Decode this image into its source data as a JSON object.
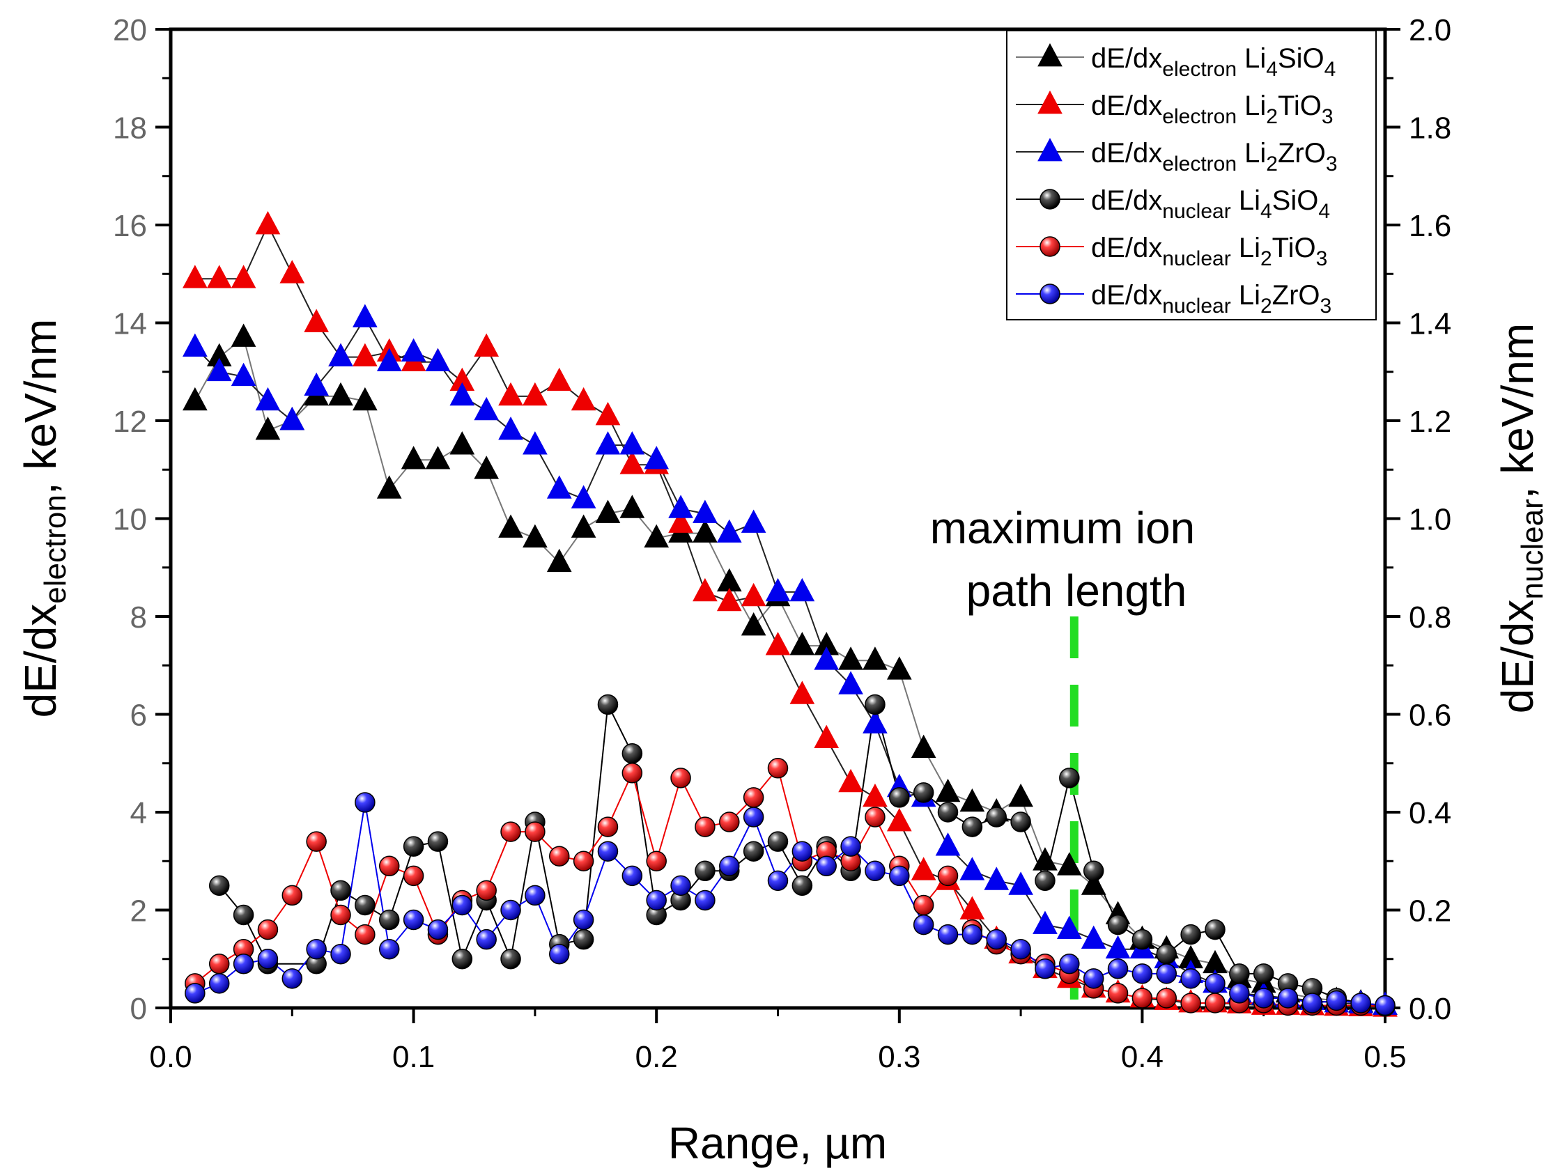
{
  "chart_data": {
    "type": "line",
    "title": "",
    "xlabel": "Range, µm",
    "ylabel_left": {
      "base": "dE/dx",
      "sub": "electron",
      "suffix": ", keV/nm"
    },
    "ylabel_right": {
      "base": "dE/dx",
      "sub": "nuclear",
      "suffix": ", keV/nm"
    },
    "xlim": [
      0,
      0.5
    ],
    "ylim_left": [
      0,
      20
    ],
    "ylim_right": [
      0,
      2.0
    ],
    "x_ticks": [
      "0.0",
      "0.1",
      "0.2",
      "0.3",
      "0.4",
      "0.5"
    ],
    "y_left_ticks": [
      "0",
      "2",
      "4",
      "6",
      "8",
      "10",
      "12",
      "14",
      "16",
      "18",
      "20"
    ],
    "y_right_ticks": [
      "0.0",
      "0.2",
      "0.4",
      "0.6",
      "0.8",
      "1.0",
      "1.2",
      "1.4",
      "1.6",
      "1.8",
      "2.0"
    ],
    "legend_position": "top-right",
    "annotation": {
      "lines": [
        "maximum ion",
        "path length"
      ],
      "x": 0.372,
      "color": "#22dd22"
    },
    "x": [
      0.01,
      0.02,
      0.03,
      0.04,
      0.05,
      0.06,
      0.07,
      0.08,
      0.09,
      0.1,
      0.11,
      0.12,
      0.13,
      0.14,
      0.15,
      0.16,
      0.17,
      0.18,
      0.19,
      0.2,
      0.21,
      0.22,
      0.23,
      0.24,
      0.25,
      0.26,
      0.27,
      0.28,
      0.29,
      0.3,
      0.31,
      0.32,
      0.33,
      0.34,
      0.35,
      0.36,
      0.37,
      0.38,
      0.39,
      0.4,
      0.41,
      0.42,
      0.43,
      0.44,
      0.45,
      0.46,
      0.47,
      0.48,
      0.49,
      0.5
    ],
    "series": [
      {
        "name": "Li4SiO4 electron",
        "label_base": "dE/dx",
        "label_sub": "electron",
        "compound": [
          [
            "Li",
            ""
          ],
          [
            "4",
            ""
          ],
          [
            "SiO",
            ""
          ],
          [
            "4",
            "s"
          ]
        ],
        "compound_text": "Li4SiO4",
        "quantity": "electron",
        "axis": "left",
        "marker": "triangle",
        "color": "#000000",
        "line_color": "#777777",
        "values": [
          12.4,
          13.3,
          13.7,
          11.8,
          12.0,
          12.5,
          12.5,
          12.4,
          10.6,
          11.2,
          11.2,
          11.5,
          11.0,
          9.8,
          9.6,
          9.1,
          9.8,
          10.1,
          10.2,
          9.6,
          9.7,
          9.7,
          8.7,
          7.8,
          8.4,
          7.4,
          7.4,
          7.1,
          7.1,
          6.9,
          5.3,
          4.4,
          4.2,
          4.0,
          4.3,
          3.0,
          2.9,
          2.5,
          1.9,
          1.4,
          1.2,
          1.0,
          0.9,
          0.6,
          0.5,
          0.3,
          0.2,
          0.15,
          0.1,
          0.05
        ]
      },
      {
        "name": "Li2TiO3 electron",
        "compound_text": "Li2TiO3",
        "quantity": "electron",
        "axis": "left",
        "marker": "triangle",
        "color": "#ee0000",
        "line_color": "#222222",
        "values": [
          14.9,
          14.9,
          14.9,
          16.0,
          15.0,
          14.0,
          13.3,
          13.3,
          13.4,
          13.2,
          13.2,
          12.8,
          13.5,
          12.5,
          12.5,
          12.8,
          12.4,
          12.1,
          11.1,
          11.1,
          9.9,
          8.5,
          8.3,
          8.4,
          7.4,
          6.4,
          5.5,
          4.6,
          4.3,
          3.8,
          2.8,
          2.6,
          2.0,
          1.4,
          1.1,
          0.8,
          0.6,
          0.4,
          0.3,
          0.2,
          0.15,
          0.1,
          0.1,
          0.08,
          0.05,
          0.05,
          0.04,
          0.03,
          0.02,
          0.01
        ]
      },
      {
        "name": "Li2ZrO3 electron",
        "compound_text": "Li2ZrO3",
        "quantity": "electron",
        "axis": "left",
        "marker": "triangle",
        "color": "#0000ee",
        "line_color": "#222222",
        "values": [
          13.5,
          13.0,
          12.9,
          12.4,
          12.0,
          12.7,
          13.3,
          14.1,
          13.2,
          13.4,
          13.2,
          12.5,
          12.2,
          11.8,
          11.5,
          10.6,
          10.4,
          11.5,
          11.5,
          11.2,
          10.2,
          10.1,
          9.7,
          9.9,
          8.5,
          8.5,
          7.1,
          6.6,
          5.8,
          4.5,
          4.3,
          3.3,
          2.8,
          2.6,
          2.5,
          1.7,
          1.6,
          1.4,
          1.2,
          1.2,
          1.0,
          0.7,
          0.5,
          0.3,
          0.25,
          0.2,
          0.15,
          0.1,
          0.08,
          0.05
        ]
      },
      {
        "name": "Li4SiO4 nuclear",
        "compound_text": "Li4SiO4",
        "quantity": "nuclear",
        "axis": "right",
        "marker": "sphere",
        "color": "#111111",
        "line_color": "#000000",
        "values": [
          null,
          0.25,
          0.19,
          0.09,
          null,
          0.09,
          0.24,
          0.21,
          0.18,
          0.33,
          0.34,
          0.1,
          0.22,
          0.1,
          0.38,
          0.13,
          0.14,
          0.62,
          0.52,
          0.19,
          0.22,
          0.28,
          0.28,
          0.32,
          0.34,
          0.25,
          0.33,
          0.28,
          0.62,
          0.43,
          0.44,
          0.4,
          0.37,
          0.39,
          0.38,
          0.26,
          0.47,
          0.28,
          0.17,
          0.14,
          0.11,
          0.15,
          0.16,
          0.07,
          0.07,
          0.05,
          0.04,
          0.02,
          0.01,
          0.005
        ]
      },
      {
        "name": "Li2TiO3 nuclear",
        "compound_text": "Li2TiO3",
        "quantity": "nuclear",
        "axis": "right",
        "marker": "sphere",
        "color": "#ee0000",
        "line_color": "#ee0000",
        "values": [
          0.05,
          0.09,
          0.12,
          0.16,
          0.23,
          0.34,
          0.19,
          0.15,
          0.29,
          0.27,
          0.15,
          0.22,
          0.24,
          0.36,
          0.36,
          0.31,
          0.3,
          0.37,
          0.48,
          0.3,
          0.47,
          0.37,
          0.38,
          0.43,
          0.49,
          0.3,
          0.32,
          0.3,
          0.39,
          0.29,
          0.21,
          0.27,
          0.16,
          0.13,
          0.11,
          0.09,
          0.07,
          0.04,
          0.03,
          0.02,
          0.02,
          0.01,
          0.01,
          0.01,
          0.01,
          0.005,
          0.005,
          0.005,
          0.005,
          0.003
        ]
      },
      {
        "name": "Li2ZrO3 nuclear",
        "compound_text": "Li2ZrO3",
        "quantity": "nuclear",
        "axis": "right",
        "marker": "sphere",
        "color": "#0000ee",
        "line_color": "#0000ee",
        "values": [
          0.03,
          0.05,
          0.09,
          0.1,
          0.06,
          0.12,
          0.11,
          0.42,
          0.12,
          0.18,
          0.16,
          0.21,
          0.14,
          0.2,
          0.23,
          0.11,
          0.18,
          0.32,
          0.27,
          0.22,
          0.25,
          0.22,
          0.29,
          0.39,
          0.26,
          0.32,
          0.29,
          0.33,
          0.28,
          0.27,
          0.17,
          0.15,
          0.15,
          0.14,
          0.12,
          0.08,
          0.09,
          0.06,
          0.08,
          0.07,
          0.07,
          0.06,
          0.05,
          0.03,
          0.02,
          0.02,
          0.01,
          0.015,
          0.01,
          0.005
        ]
      }
    ],
    "legend": [
      {
        "base": "dE/dx",
        "sub": "electron",
        "compound": [
          "Li",
          "4",
          "SiO",
          "4"
        ],
        "marker": "triangle",
        "color": "#000000",
        "line_color": "#777777"
      },
      {
        "base": "dE/dx",
        "sub": "electron",
        "compound": [
          "Li",
          "2",
          "TiO",
          "3"
        ],
        "marker": "triangle",
        "color": "#ee0000",
        "line_color": "#222222"
      },
      {
        "base": "dE/dx",
        "sub": "electron",
        "compound": [
          "Li",
          "2",
          "ZrO",
          "3"
        ],
        "marker": "triangle",
        "color": "#0000ee",
        "line_color": "#222222"
      },
      {
        "base": "dE/dx",
        "sub": "nuclear",
        "compound": [
          "Li",
          "4",
          "SiO",
          "4"
        ],
        "marker": "sphere",
        "color": "#111111",
        "line_color": "#000000"
      },
      {
        "base": "dE/dx",
        "sub": "nuclear",
        "compound": [
          "Li",
          "2",
          "TiO",
          "3"
        ],
        "marker": "sphere",
        "color": "#ee0000",
        "line_color": "#ee0000"
      },
      {
        "base": "dE/dx",
        "sub": "nuclear",
        "compound": [
          "Li",
          "2",
          "ZrO",
          "3"
        ],
        "marker": "sphere",
        "color": "#0000ee",
        "line_color": "#0000ee"
      }
    ]
  }
}
